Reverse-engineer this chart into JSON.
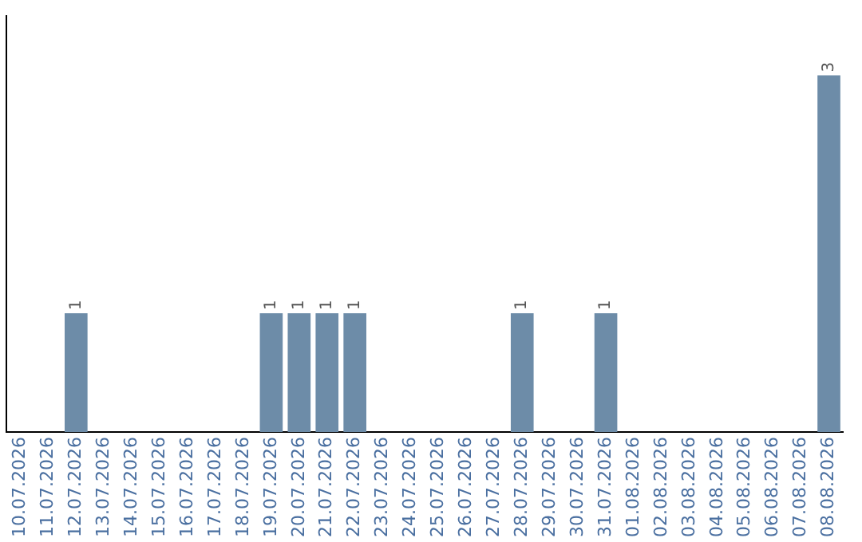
{
  "chart_data": {
    "type": "bar",
    "categories": [
      "10.07.2026",
      "11.07.2026",
      "12.07.2026",
      "13.07.2026",
      "14.07.2026",
      "15.07.2026",
      "16.07.2026",
      "17.07.2026",
      "18.07.2026",
      "19.07.2026",
      "20.07.2026",
      "21.07.2026",
      "22.07.2026",
      "23.07.2026",
      "24.07.2026",
      "25.07.2026",
      "26.07.2026",
      "27.07.2026",
      "28.07.2026",
      "29.07.2026",
      "30.07.2026",
      "31.07.2026",
      "01.08.2026",
      "02.08.2026",
      "03.08.2026",
      "04.08.2026",
      "05.08.2026",
      "06.08.2026",
      "07.08.2026",
      "08.08.2026"
    ],
    "values": [
      0,
      0,
      1,
      0,
      0,
      0,
      0,
      0,
      0,
      1,
      1,
      1,
      1,
      0,
      0,
      0,
      0,
      0,
      1,
      0,
      0,
      1,
      0,
      0,
      0,
      0,
      0,
      0,
      0,
      3
    ],
    "value_labels": [
      null,
      null,
      "1",
      null,
      null,
      null,
      null,
      null,
      null,
      "1",
      "1",
      "1",
      "1",
      null,
      null,
      null,
      null,
      null,
      "1",
      null,
      null,
      "1",
      null,
      null,
      null,
      null,
      null,
      null,
      null,
      "3"
    ],
    "color": "#6d8ca8",
    "grid": false,
    "legend": false,
    "tick_labels": "x"
  }
}
